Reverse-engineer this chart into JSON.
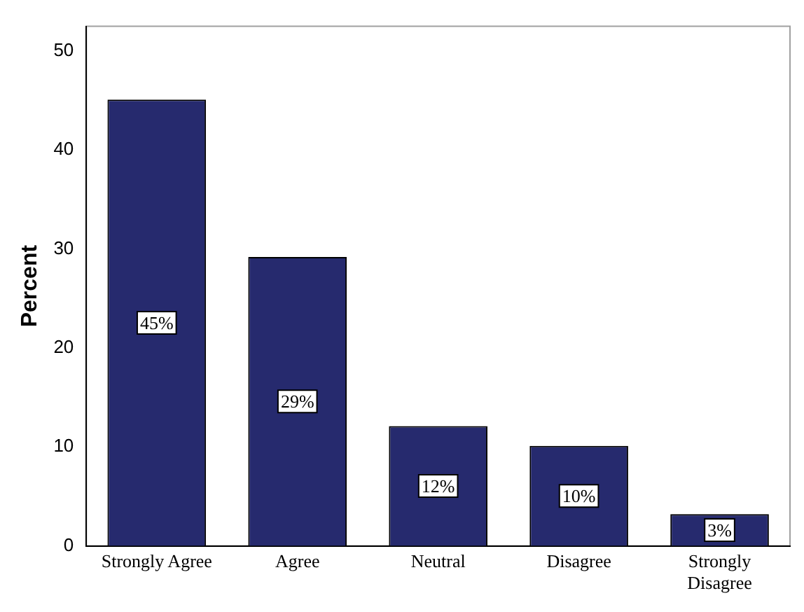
{
  "chart_data": {
    "type": "bar",
    "ylabel": "Percent",
    "categories": [
      "Strongly Agree",
      "Agree",
      "Neutral",
      "Disagree",
      "Strongly Disagree"
    ],
    "values": [
      45.1,
      29.2,
      12.1,
      10.1,
      3.2
    ],
    "value_labels": [
      "45%",
      "29%",
      "12%",
      "10%",
      "3%"
    ],
    "color": "#262a6e",
    "ylim": [
      0,
      52.5
    ],
    "yticks": [
      0,
      10,
      20,
      30,
      40,
      50
    ],
    "grid": false,
    "legend": false
  }
}
